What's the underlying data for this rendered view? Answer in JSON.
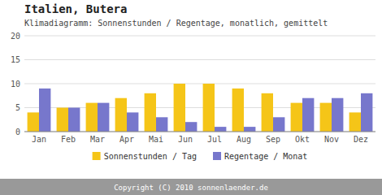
{
  "chart_data": {
    "type": "bar",
    "title": "Italien, Butera",
    "subtitle": "Klimadiagramm: Sonnenstunden / Regentage, monatlich, gemittelt",
    "categories": [
      "Jan",
      "Feb",
      "Mar",
      "Apr",
      "Mai",
      "Jun",
      "Jul",
      "Aug",
      "Sep",
      "Okt",
      "Nov",
      "Dez"
    ],
    "series": [
      {
        "name": "Sonnenstunden / Tag",
        "color": "#F5C518",
        "values": [
          4,
          5,
          6,
          7,
          8,
          10,
          10,
          9,
          8,
          6,
          6,
          4
        ]
      },
      {
        "name": "Regentage / Monat",
        "color": "#7777CC",
        "values": [
          9,
          5,
          6,
          4,
          3,
          2,
          1,
          1,
          3,
          7,
          7,
          8
        ]
      }
    ],
    "ylim": [
      0,
      20
    ],
    "yticks": [
      0,
      5,
      10,
      15,
      20
    ],
    "grid": true,
    "legend": "bottom",
    "annotations": [
      "Copyright (C) 2010 sonnenlaender.de"
    ]
  }
}
